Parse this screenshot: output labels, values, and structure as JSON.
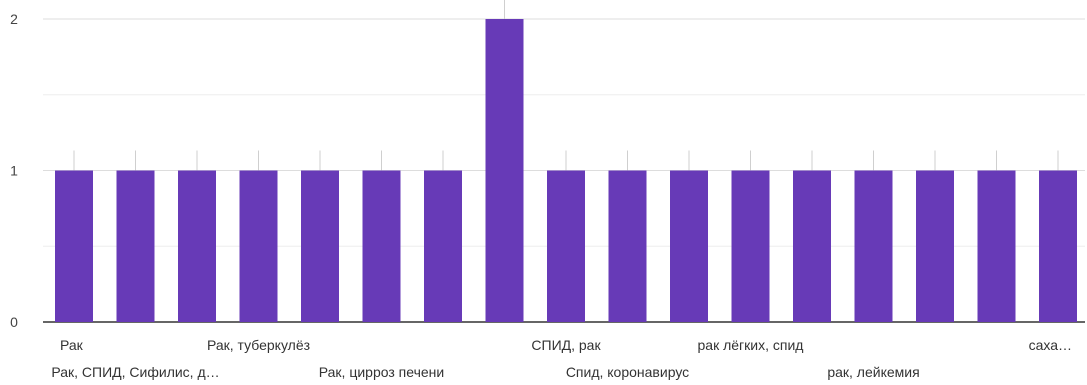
{
  "chart_data": {
    "type": "bar",
    "title": "",
    "xlabel": "",
    "ylabel": "",
    "ylim": [
      0,
      2
    ],
    "yticks": [
      "0",
      "1",
      "2"
    ],
    "grid": true,
    "bar_color": "#673ab7",
    "categories": [
      "Рак",
      "Рак, СПИД, Сифилис, д…",
      "",
      "Рак, туберкулёз",
      "",
      "Рак, цирроз печени",
      "",
      "",
      "СПИД, рак",
      "Спид, коронавирус",
      "",
      "рак лёгких, спид",
      "",
      "рак, лейкемия",
      "",
      "",
      "саха…"
    ],
    "values": [
      1,
      1,
      1,
      1,
      1,
      1,
      1,
      2,
      1,
      1,
      1,
      1,
      1,
      1,
      1,
      1,
      1
    ]
  }
}
